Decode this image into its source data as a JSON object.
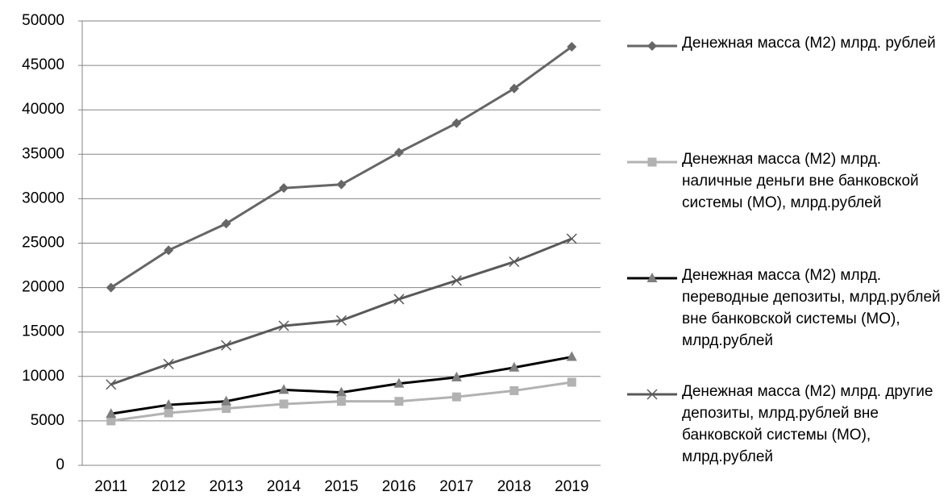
{
  "chart_data": {
    "type": "line",
    "categories": [
      "2011",
      "2012",
      "2013",
      "2014",
      "2015",
      "2016",
      "2017",
      "2018",
      "2019"
    ],
    "series": [
      {
        "name": "Денежная масса (М2) млрд. рублей",
        "color": "#666666",
        "marker": "diamond",
        "values": [
          20000,
          24200,
          27200,
          31200,
          31600,
          35200,
          38500,
          42400,
          47100
        ]
      },
      {
        "name": "Денежная масса (М2) млрд. наличные деньги вне банковской системы (МО), млрд.рублей",
        "color": "#b2b2b2",
        "marker": "square",
        "values": [
          5000,
          5900,
          6400,
          6900,
          7200,
          7200,
          7700,
          8400,
          9350
        ]
      },
      {
        "name": "Денежная масса (М2) млрд. переводные депозиты, млрд.рублей вне банковской системы (МО), млрд.рублей",
        "color": "#000000",
        "marker-color": "#7f7f7f",
        "marker": "triangle",
        "values": [
          5800,
          6800,
          7200,
          8500,
          8200,
          9200,
          9900,
          11000,
          12200
        ]
      },
      {
        "name": "Денежная масса (М2) млрд. другие депозиты, млрд.рублей вне банковской системы (МО), млрд.рублей",
        "color": "#595959",
        "marker": "x",
        "values": [
          9100,
          11400,
          13500,
          15700,
          16300,
          18700,
          20800,
          22900,
          25500
        ]
      }
    ],
    "ylim": [
      0,
      50000
    ],
    "yticks": [
      0,
      5000,
      10000,
      15000,
      20000,
      25000,
      30000,
      35000,
      40000,
      45000,
      50000
    ],
    "grid": true,
    "legend": "right"
  }
}
